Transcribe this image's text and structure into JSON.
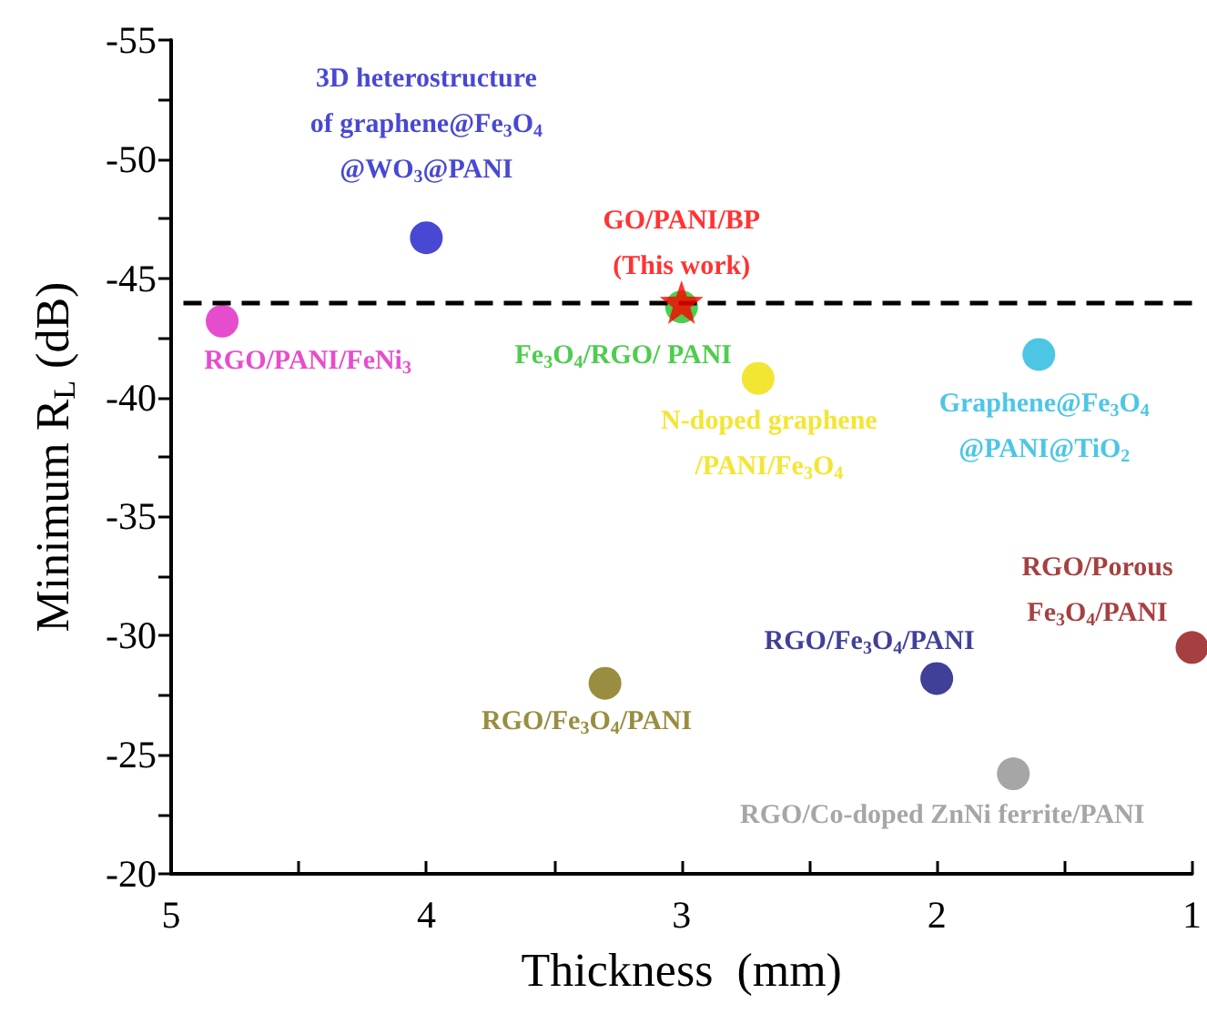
{
  "chart_data": {
    "type": "scatter",
    "xlabel": "Thickness  (mm)",
    "ylabel": "Minimum R$_{L}$ (dB)",
    "marker": "circle",
    "xlim": [
      5,
      1
    ],
    "xticks": [
      5,
      {
        "value": 4.5,
        "label": null
      },
      4,
      {
        "value": 3.5,
        "label": null
      },
      3,
      {
        "value": 2.5,
        "label": null
      },
      2,
      {
        "value": 1.5,
        "label": null
      },
      1
    ],
    "ylim": [
      -20,
      -55
    ],
    "yticks": [
      -20,
      {
        "value": -22.5,
        "label": null
      },
      -25,
      {
        "value": -27.5,
        "label": null
      },
      -30,
      {
        "value": -32.5,
        "label": null
      },
      -35,
      {
        "value": -37.5,
        "label": null
      },
      -40,
      {
        "value": -42.5,
        "label": null
      },
      -45,
      {
        "value": -47.5,
        "label": null
      },
      -50,
      {
        "value": -52.5,
        "label": null
      },
      -55
    ],
    "ref_lines": [
      {
        "axis": "y",
        "value": -44,
        "color": "#000000",
        "line_style": "dashed"
      }
    ],
    "series": [
      {
        "name": "RGO/PANI/FeNi$_{3}$",
        "color": "#e020c0",
        "x": [
          4.8
        ],
        "values": [
          -43.2
        ]
      },
      {
        "name": "3D heterostructure\nof graphene@Fe$_{3}$O$_{4}$\n@WO$_{3}$@PANI",
        "color": "#1a1ac8",
        "x": [
          4.0
        ],
        "values": [
          -46.7
        ]
      },
      {
        "name": "Fe$_{3}$O$_{4}$/RGO/ PANI",
        "color": "#22c022",
        "x": [
          3.0
        ],
        "values": [
          -43.8
        ]
      },
      {
        "name": "N-doped graphene\n/PANI/Fe$_{3}$O$_{4}$",
        "color": "#f0e000",
        "x": [
          2.7
        ],
        "values": [
          -40.8
        ]
      },
      {
        "name": "Graphene@Fe$_{3}$O$_{4}$\n@PANI@TiO$_{2}$",
        "color": "#20b8e0",
        "x": [
          1.6
        ],
        "values": [
          -41.8
        ]
      },
      {
        "name": "RGO/Fe$_{3}$O$_{4}$/PANI",
        "color": "#807010",
        "x": [
          3.3
        ],
        "values": [
          -28.0
        ]
      },
      {
        "name": "RGO/Fe$_{3}$O$_{4}$/PANI",
        "color": "#101080",
        "x": [
          2.0
        ],
        "values": [
          -28.2
        ]
      },
      {
        "name": "RGO/Co-doped ZnNi ferrite/PANI",
        "color": "#909090",
        "x": [
          1.7
        ],
        "values": [
          -24.2
        ]
      },
      {
        "name": "RGO/Porous\nFe$_{3}$O$_{4}$/PANI",
        "color": "#901010",
        "x": [
          1.0
        ],
        "values": [
          -29.5
        ]
      },
      {
        "name": "GO/PANI/BP\n(This work)",
        "color": "#ff0000",
        "x": [
          3.0
        ],
        "values": [
          -44.0
        ],
        "marker": "star"
      }
    ]
  }
}
